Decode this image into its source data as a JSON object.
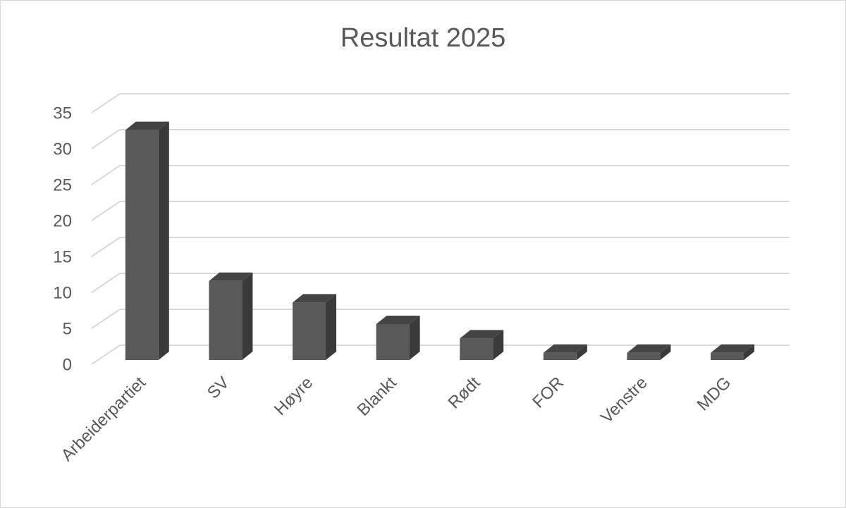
{
  "chart_data": {
    "type": "bar",
    "title": "Resultat 2025",
    "categories": [
      "Arbeiderpartiet",
      "SV",
      "Høyre",
      "Blankt",
      "Rødt",
      "FOR",
      "Venstre",
      "MDG"
    ],
    "values": [
      32,
      11,
      8,
      5,
      3,
      1,
      1,
      1
    ],
    "color": "#595959",
    "ylim": [
      0,
      35
    ],
    "yticks": [
      0,
      5,
      10,
      15,
      20,
      25,
      30,
      35
    ],
    "grid": true
  }
}
